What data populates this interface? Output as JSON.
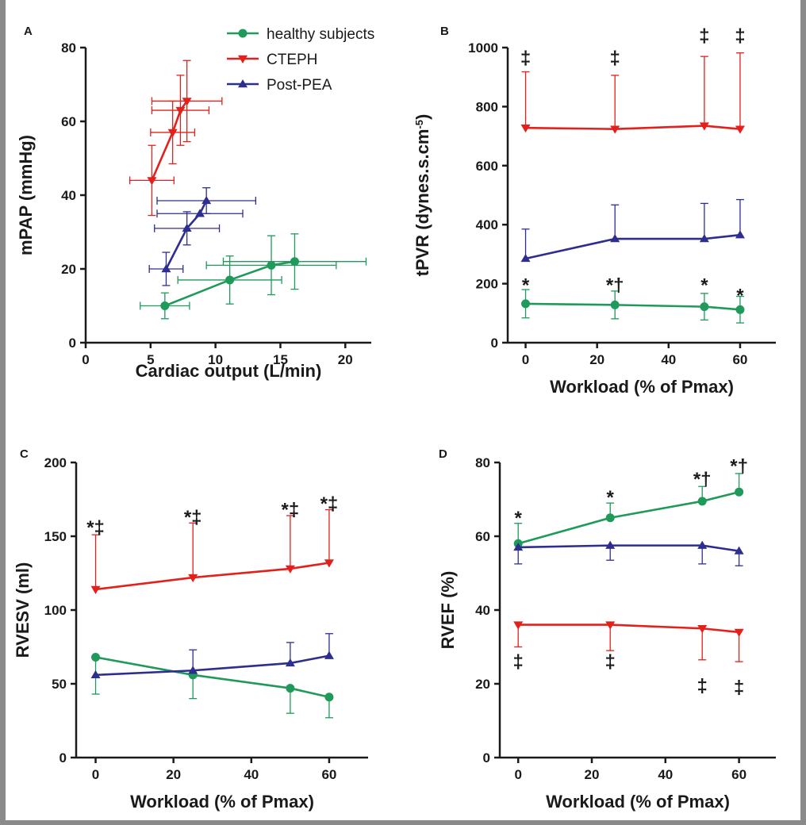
{
  "colors": {
    "healthy": "#1f9a5a",
    "cteph": "#e3201b",
    "postpea": "#2e2e8f",
    "frame": "#8a8a8a"
  },
  "legend": [
    {
      "name": "healthy subjects",
      "marker": "circle",
      "color_key": "healthy"
    },
    {
      "name": "CTEPH",
      "marker": "triangle-down",
      "color_key": "cteph"
    },
    {
      "name": "Post-PEA",
      "marker": "triangle-up",
      "color_key": "postpea"
    }
  ],
  "chart_data": [
    {
      "panel": "A",
      "type": "line",
      "xlabel": "Cardiac output (L/min)",
      "ylabel": "mPAP (mmHg)",
      "xlim": [
        0,
        22
      ],
      "ylim": [
        0,
        80
      ],
      "xticks": [
        0,
        5,
        10,
        15,
        20
      ],
      "yticks": [
        0,
        20,
        40,
        60,
        80
      ],
      "series": [
        {
          "name": "healthy subjects",
          "color_key": "healthy",
          "marker": "circle",
          "points": [
            {
              "x": 6.1,
              "y": 10,
              "xerr": 1.9,
              "yerr": 3.5
            },
            {
              "x": 11.1,
              "y": 17,
              "xerr": 4.0,
              "yerr": 6.5
            },
            {
              "x": 14.3,
              "y": 21,
              "xerr": 5.0,
              "yerr": 8.0
            },
            {
              "x": 16.1,
              "y": 22,
              "xerr": 5.5,
              "yerr": 7.5
            }
          ]
        },
        {
          "name": "CTEPH",
          "color_key": "cteph",
          "marker": "triangle-down",
          "points": [
            {
              "x": 5.1,
              "y": 44,
              "xerr": 1.7,
              "yerr": 9.5
            },
            {
              "x": 6.7,
              "y": 57,
              "xerr": 1.7,
              "yerr": 8.5
            },
            {
              "x": 7.3,
              "y": 63,
              "xerr": 2.2,
              "yerr": 9.5
            },
            {
              "x": 7.8,
              "y": 65.5,
              "xerr": 2.7,
              "yerr": 11
            }
          ]
        },
        {
          "name": "Post-PEA",
          "color_key": "postpea",
          "marker": "triangle-up",
          "points": [
            {
              "x": 6.2,
              "y": 20,
              "xerr": 1.3,
              "yerr": 4.5
            },
            {
              "x": 7.8,
              "y": 31,
              "xerr": 2.5,
              "yerr": 4.5
            },
            {
              "x": 8.8,
              "y": 35,
              "xerr": 3.3,
              "yerr": 0
            },
            {
              "x": 9.3,
              "y": 38.5,
              "xerr": 3.8,
              "yerr": 3.5
            }
          ]
        }
      ],
      "annotations": []
    },
    {
      "panel": "B",
      "type": "line",
      "xlabel": "Workload (% of Pmax)",
      "ylabel": "tPVR (dynes.s.cm",
      "ylabel_sup": "-5",
      "ylabel_end": ")",
      "xlim": [
        -5,
        70
      ],
      "ylim": [
        0,
        1000
      ],
      "xticks": [
        0,
        20,
        40,
        60
      ],
      "yticks": [
        0,
        200,
        400,
        600,
        800,
        1000
      ],
      "series": [
        {
          "name": "healthy subjects",
          "color_key": "healthy",
          "marker": "circle",
          "errdir": "both",
          "points": [
            {
              "x": 0,
              "y": 132,
              "yerr": 48
            },
            {
              "x": 25,
              "y": 128,
              "yerr": 47
            },
            {
              "x": 50,
              "y": 122,
              "yerr": 45
            },
            {
              "x": 60,
              "y": 112,
              "yerr": 45
            }
          ]
        },
        {
          "name": "CTEPH",
          "color_key": "cteph",
          "marker": "triangle-down",
          "errdir": "up",
          "points": [
            {
              "x": 0,
              "y": 728,
              "yerr": 190
            },
            {
              "x": 25,
              "y": 724,
              "yerr": 182
            },
            {
              "x": 50,
              "y": 735,
              "yerr": 235
            },
            {
              "x": 60,
              "y": 724,
              "yerr": 258
            }
          ]
        },
        {
          "name": "Post-PEA",
          "color_key": "postpea",
          "marker": "triangle-up",
          "errdir": "up",
          "points": [
            {
              "x": 0,
              "y": 285,
              "yerr": 100
            },
            {
              "x": 25,
              "y": 352,
              "yerr": 115
            },
            {
              "x": 50,
              "y": 352,
              "yerr": 120
            },
            {
              "x": 60,
              "y": 365,
              "yerr": 120
            }
          ]
        }
      ],
      "annotations": [
        {
          "text": "‡",
          "x": 0,
          "y": 965
        },
        {
          "text": "‡",
          "x": 25,
          "y": 965
        },
        {
          "text": "‡",
          "x": 50,
          "y": 1040
        },
        {
          "text": "‡",
          "x": 60,
          "y": 1040
        },
        {
          "text": "*",
          "x": 0,
          "y": 195
        },
        {
          "text": "*†",
          "x": 25,
          "y": 195
        },
        {
          "text": "*",
          "x": 50,
          "y": 195
        },
        {
          "text": "*",
          "x": 60,
          "y": 160
        }
      ]
    },
    {
      "panel": "C",
      "type": "line",
      "xlabel": "Workload (% of Pmax)",
      "ylabel": "RVESV (ml)",
      "xlim": [
        -5,
        70
      ],
      "ylim": [
        0,
        200
      ],
      "xticks": [
        0,
        20,
        40,
        60
      ],
      "yticks": [
        0,
        50,
        100,
        150,
        200
      ],
      "series": [
        {
          "name": "healthy subjects",
          "color_key": "healthy",
          "marker": "circle",
          "errdir": "down",
          "points": [
            {
              "x": 0,
              "y": 68,
              "yerr": 25
            },
            {
              "x": 25,
              "y": 56,
              "yerr": 16
            },
            {
              "x": 50,
              "y": 47,
              "yerr": 17
            },
            {
              "x": 60,
              "y": 41,
              "yerr": 14
            }
          ]
        },
        {
          "name": "CTEPH",
          "color_key": "cteph",
          "marker": "triangle-down",
          "errdir": "up",
          "points": [
            {
              "x": 0,
              "y": 114,
              "yerr": 37
            },
            {
              "x": 25,
              "y": 122,
              "yerr": 37
            },
            {
              "x": 50,
              "y": 128,
              "yerr": 36
            },
            {
              "x": 60,
              "y": 132,
              "yerr": 36
            }
          ]
        },
        {
          "name": "Post-PEA",
          "color_key": "postpea",
          "marker": "triangle-up",
          "errdir": "up",
          "points": [
            {
              "x": 0,
              "y": 56,
              "yerr": 0
            },
            {
              "x": 25,
              "y": 59,
              "yerr": 14
            },
            {
              "x": 50,
              "y": 64,
              "yerr": 14
            },
            {
              "x": 60,
              "y": 69,
              "yerr": 15
            }
          ]
        }
      ],
      "annotations": [
        {
          "text": "*‡",
          "x": 0,
          "y": 156
        },
        {
          "text": "*‡",
          "x": 25,
          "y": 163
        },
        {
          "text": "*‡",
          "x": 50,
          "y": 168
        },
        {
          "text": "*‡",
          "x": 60,
          "y": 172
        }
      ]
    },
    {
      "panel": "D",
      "type": "line",
      "xlabel": "Workload (% of Pmax)",
      "ylabel": "RVEF (%)",
      "xlim": [
        -5,
        70
      ],
      "ylim": [
        0,
        80
      ],
      "xticks": [
        0,
        20,
        40,
        60
      ],
      "yticks": [
        0,
        20,
        40,
        60,
        80
      ],
      "series": [
        {
          "name": "healthy subjects",
          "color_key": "healthy",
          "marker": "circle",
          "errdir": "up",
          "points": [
            {
              "x": 0,
              "y": 58,
              "yerr": 5.5
            },
            {
              "x": 25,
              "y": 65,
              "yerr": 4
            },
            {
              "x": 50,
              "y": 69.5,
              "yerr": 4
            },
            {
              "x": 60,
              "y": 72,
              "yerr": 5
            }
          ]
        },
        {
          "name": "CTEPH",
          "color_key": "cteph",
          "marker": "triangle-down",
          "errdir": "down",
          "points": [
            {
              "x": 0,
              "y": 36,
              "yerr": 6
            },
            {
              "x": 25,
              "y": 36,
              "yerr": 7
            },
            {
              "x": 50,
              "y": 35,
              "yerr": 8.5
            },
            {
              "x": 60,
              "y": 34,
              "yerr": 8
            }
          ]
        },
        {
          "name": "Post-PEA",
          "color_key": "postpea",
          "marker": "triangle-up",
          "errdir": "down",
          "points": [
            {
              "x": 0,
              "y": 57,
              "yerr": 4.5
            },
            {
              "x": 25,
              "y": 57.5,
              "yerr": 4
            },
            {
              "x": 50,
              "y": 57.5,
              "yerr": 5
            },
            {
              "x": 60,
              "y": 56,
              "yerr": 4
            }
          ]
        }
      ],
      "annotations": [
        {
          "text": "*",
          "x": 0,
          "y": 65
        },
        {
          "text": "*",
          "x": 25,
          "y": 70.5
        },
        {
          "text": "*†",
          "x": 50,
          "y": 75.5
        },
        {
          "text": "*†",
          "x": 60,
          "y": 79
        },
        {
          "text": "‡",
          "x": 0,
          "y": 26
        },
        {
          "text": "‡",
          "x": 25,
          "y": 26
        },
        {
          "text": "‡",
          "x": 50,
          "y": 19.5
        },
        {
          "text": "‡",
          "x": 60,
          "y": 19
        }
      ]
    }
  ]
}
